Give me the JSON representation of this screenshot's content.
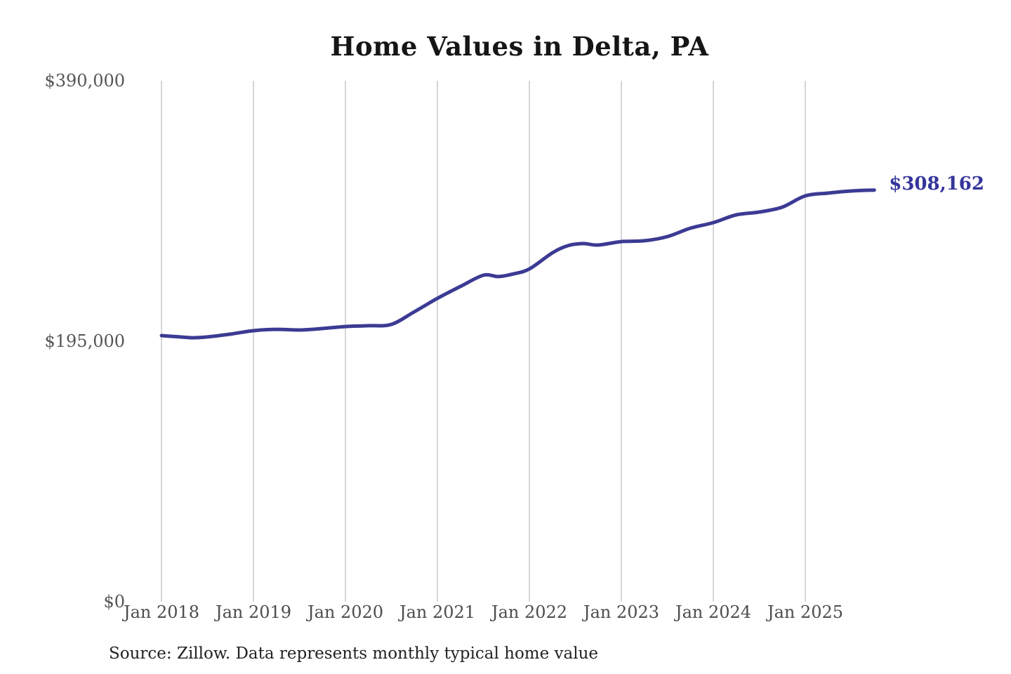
{
  "title": "Home Values in Delta, PA",
  "source_note": "Source: Zillow. Data represents monthly typical home value",
  "colors": {
    "line": "#3b3b94",
    "end_label": "#35359b",
    "grid": "#cbcbcb",
    "y_tick_text": "#555555",
    "x_tick_text": "#4d4d4d",
    "title_text": "#151515",
    "source_text": "#222222",
    "background": "#ffffff"
  },
  "chart_data": {
    "type": "line",
    "title": "Home Values in Delta, PA",
    "xlabel": "",
    "ylabel": "",
    "ylim": [
      0,
      390000
    ],
    "grid": "vertical-only",
    "legend": "none",
    "x_tick_labels": [
      "Jan 2018",
      "Jan 2019",
      "Jan 2020",
      "Jan 2021",
      "Jan 2022",
      "Jan 2023",
      "Jan 2024",
      "Jan 2025"
    ],
    "x_tick_years": [
      2018,
      2019,
      2020,
      2021,
      2022,
      2023,
      2024,
      2025
    ],
    "y_ticks": [
      {
        "label": "$0",
        "value": 0
      },
      {
        "label": "$195,000",
        "value": 195000
      },
      {
        "label": "$390,000",
        "value": 390000
      }
    ],
    "last_value_label": "$308,162",
    "last_value": 308162,
    "series": [
      {
        "name": "Monthly typical home value",
        "points": [
          [
            "2018-01",
            199200
          ],
          [
            "2018-03",
            198400
          ],
          [
            "2018-05",
            197600
          ],
          [
            "2018-07",
            198200
          ],
          [
            "2018-10",
            200300
          ],
          [
            "2019-01",
            202900
          ],
          [
            "2019-04",
            203900
          ],
          [
            "2019-07",
            203400
          ],
          [
            "2019-10",
            204500
          ],
          [
            "2020-01",
            206000
          ],
          [
            "2020-04",
            206600
          ],
          [
            "2020-07",
            207600
          ],
          [
            "2020-10",
            217100
          ],
          [
            "2021-01",
            227100
          ],
          [
            "2021-04",
            236000
          ],
          [
            "2021-07",
            244400
          ],
          [
            "2021-09",
            243400
          ],
          [
            "2021-11",
            245500
          ],
          [
            "2022-01",
            249100
          ],
          [
            "2022-04",
            261200
          ],
          [
            "2022-06",
            266500
          ],
          [
            "2022-08",
            268100
          ],
          [
            "2022-10",
            267000
          ],
          [
            "2023-01",
            269600
          ],
          [
            "2023-04",
            270200
          ],
          [
            "2023-07",
            273300
          ],
          [
            "2023-10",
            279600
          ],
          [
            "2024-01",
            283800
          ],
          [
            "2024-04",
            289600
          ],
          [
            "2024-07",
            291700
          ],
          [
            "2024-10",
            295400
          ],
          [
            "2025-01",
            303800
          ],
          [
            "2025-04",
            305900
          ],
          [
            "2025-07",
            307500
          ],
          [
            "2025-10",
            308162
          ]
        ]
      }
    ]
  }
}
